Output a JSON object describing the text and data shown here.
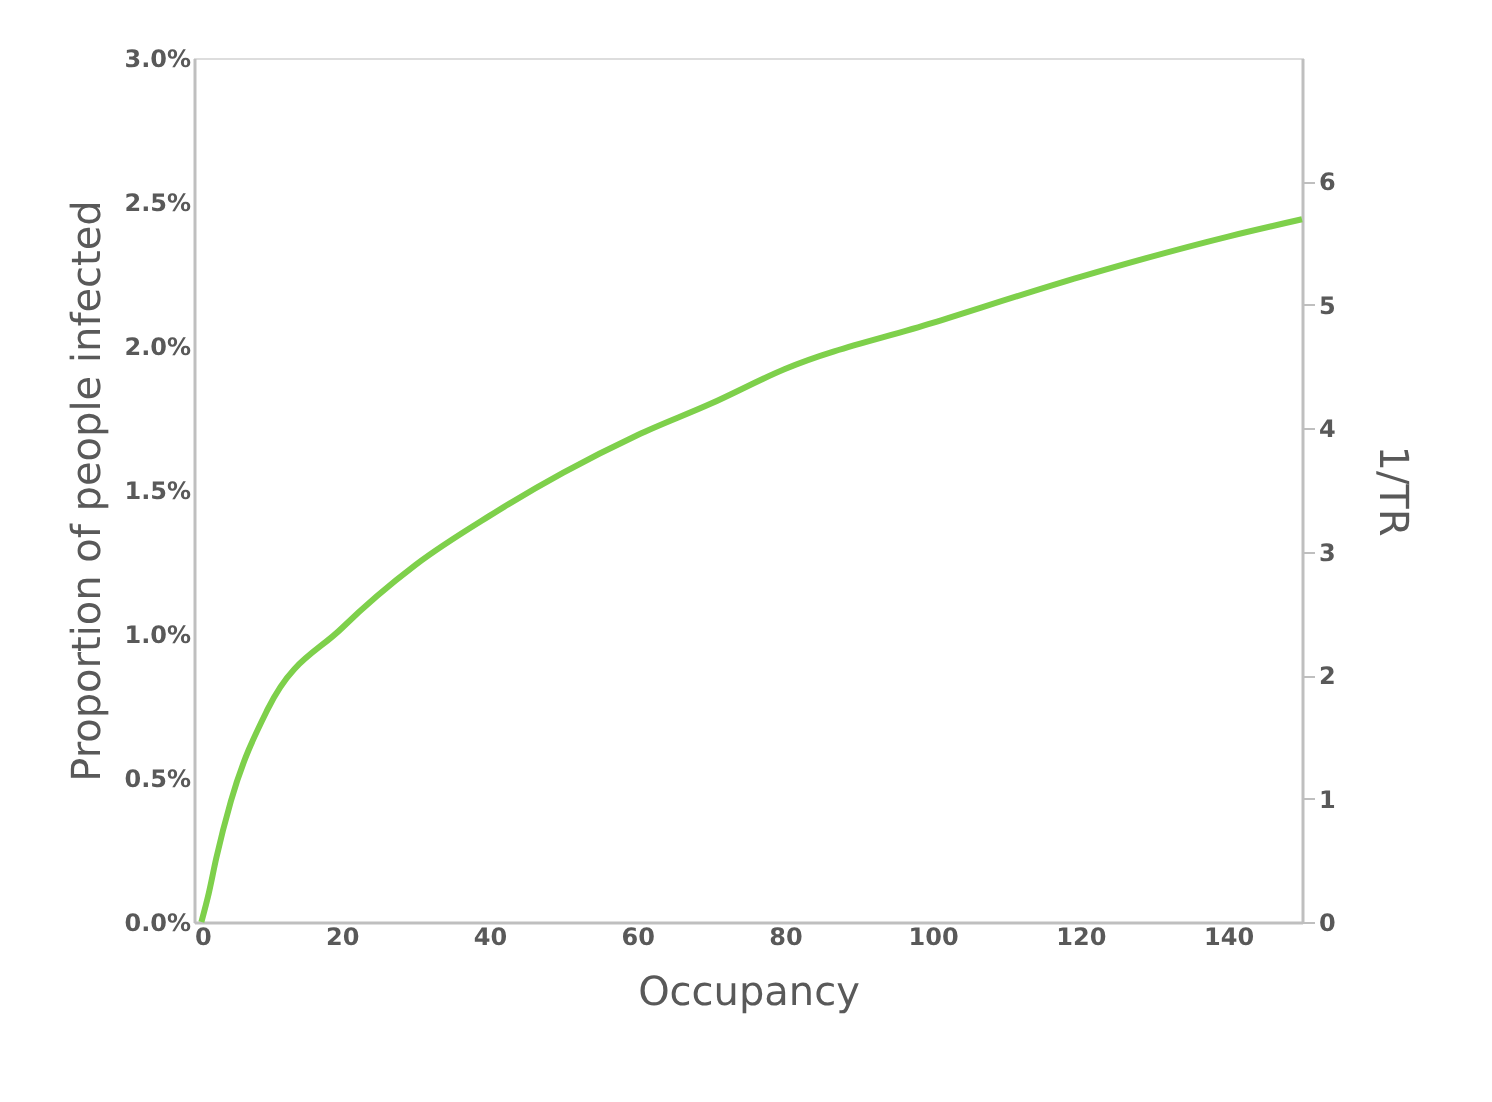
{
  "chart_data": {
    "type": "line",
    "xlabel": "Occupancy",
    "ylabel": "Proportion of people infected",
    "y2label": "1/TR",
    "x": [
      1,
      2,
      3,
      5,
      10,
      20,
      30,
      40,
      50,
      60,
      70,
      80,
      100,
      120,
      140,
      150
    ],
    "series": [
      {
        "color": "#7ed04b",
        "values": [
          0,
          0.1,
          0.22,
          0.42,
          0.74,
          1.02,
          1.24,
          1.41,
          1.56,
          1.69,
          1.8,
          1.92,
          2.08,
          2.24,
          2.38,
          2.44
        ]
      }
    ],
    "xlim": [
      0,
      150
    ],
    "xticks": [
      0,
      20,
      40,
      60,
      80,
      100,
      120,
      140
    ],
    "ylim": [
      0,
      3
    ],
    "yticks": [
      {
        "value": 0,
        "label": "0.0%"
      },
      {
        "value": 0.5,
        "label": "0.5%"
      },
      {
        "value": 1,
        "label": "1.0%"
      },
      {
        "value": 1.5,
        "label": "1.5%"
      },
      {
        "value": 2,
        "label": "2.0%"
      },
      {
        "value": 2.5,
        "label": "2.5%"
      },
      {
        "value": 3,
        "label": "3.0%"
      }
    ],
    "y2lim": [
      0,
      7
    ],
    "y2ticks": [
      0,
      1,
      2,
      3,
      4,
      5,
      6
    ],
    "grid": false,
    "marker": "none",
    "line_style": "solid"
  }
}
